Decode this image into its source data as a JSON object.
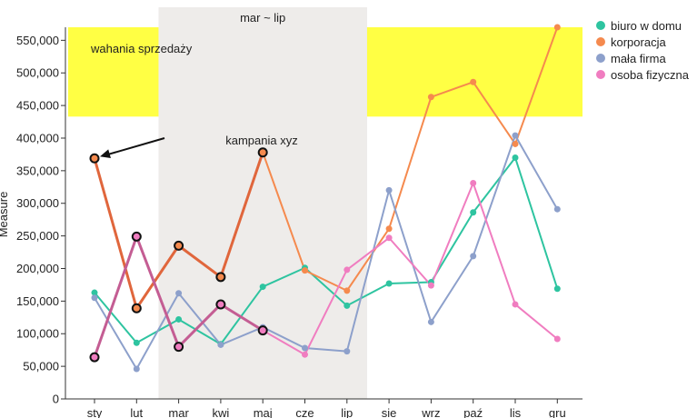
{
  "chart_data": {
    "type": "line",
    "title": "",
    "xlabel": "",
    "ylabel": "Measure",
    "ylim": [
      0,
      570000
    ],
    "yticks": [
      0,
      50000,
      100000,
      150000,
      200000,
      250000,
      300000,
      350000,
      400000,
      450000,
      500000,
      550000
    ],
    "ytick_labels": [
      "0",
      "50,000",
      "100,000",
      "150,000",
      "200,000",
      "250,000",
      "300,000",
      "350,000",
      "400,000",
      "450,000",
      "500,000",
      "550,000"
    ],
    "categories": [
      "sty",
      "lut",
      "mar",
      "kwi",
      "maj",
      "cze",
      "lip",
      "sie",
      "wrz",
      "paź",
      "lis",
      "gru"
    ],
    "series": [
      {
        "name": "biuro w domu",
        "color": "#2ec4a0",
        "values": [
          163000,
          86000,
          122000,
          84000,
          172000,
          201000,
          143000,
          177000,
          179000,
          286000,
          370000,
          169000
        ]
      },
      {
        "name": "korporacja",
        "color": "#f58a4e",
        "values": [
          369000,
          139000,
          235000,
          187000,
          378000,
          197000,
          166000,
          261000,
          463000,
          486000,
          391000,
          570000
        ]
      },
      {
        "name": "mała firma",
        "color": "#8da0cb",
        "values": [
          155000,
          46000,
          162000,
          83000,
          110000,
          78000,
          73000,
          320000,
          118000,
          219000,
          404000,
          291000
        ]
      },
      {
        "name": "osoba fizyczna",
        "color": "#f07dc0",
        "values": [
          64000,
          249000,
          80000,
          145000,
          105000,
          68000,
          198000,
          247000,
          174000,
          331000,
          145000,
          92000
        ]
      }
    ],
    "legend_position": "top-right",
    "highlight_band": {
      "label": "wahania sprzedaży",
      "color": "#ffff44",
      "y_from": 433000,
      "y_to": 570000
    },
    "highlight_range": {
      "label": "mar ~ lip",
      "color": "#eeecea",
      "from": "mar",
      "to": "lip"
    },
    "emphasized": {
      "series": [
        "korporacja",
        "osoba fizyczna"
      ],
      "range": [
        "sty",
        "maj"
      ],
      "korporacja_color": "#e0663c",
      "osoba_fizyczna_color": "#c45d93"
    },
    "annotation": {
      "text": "kampania xyz",
      "points_to": {
        "category": "sty",
        "value": 369000
      }
    }
  }
}
